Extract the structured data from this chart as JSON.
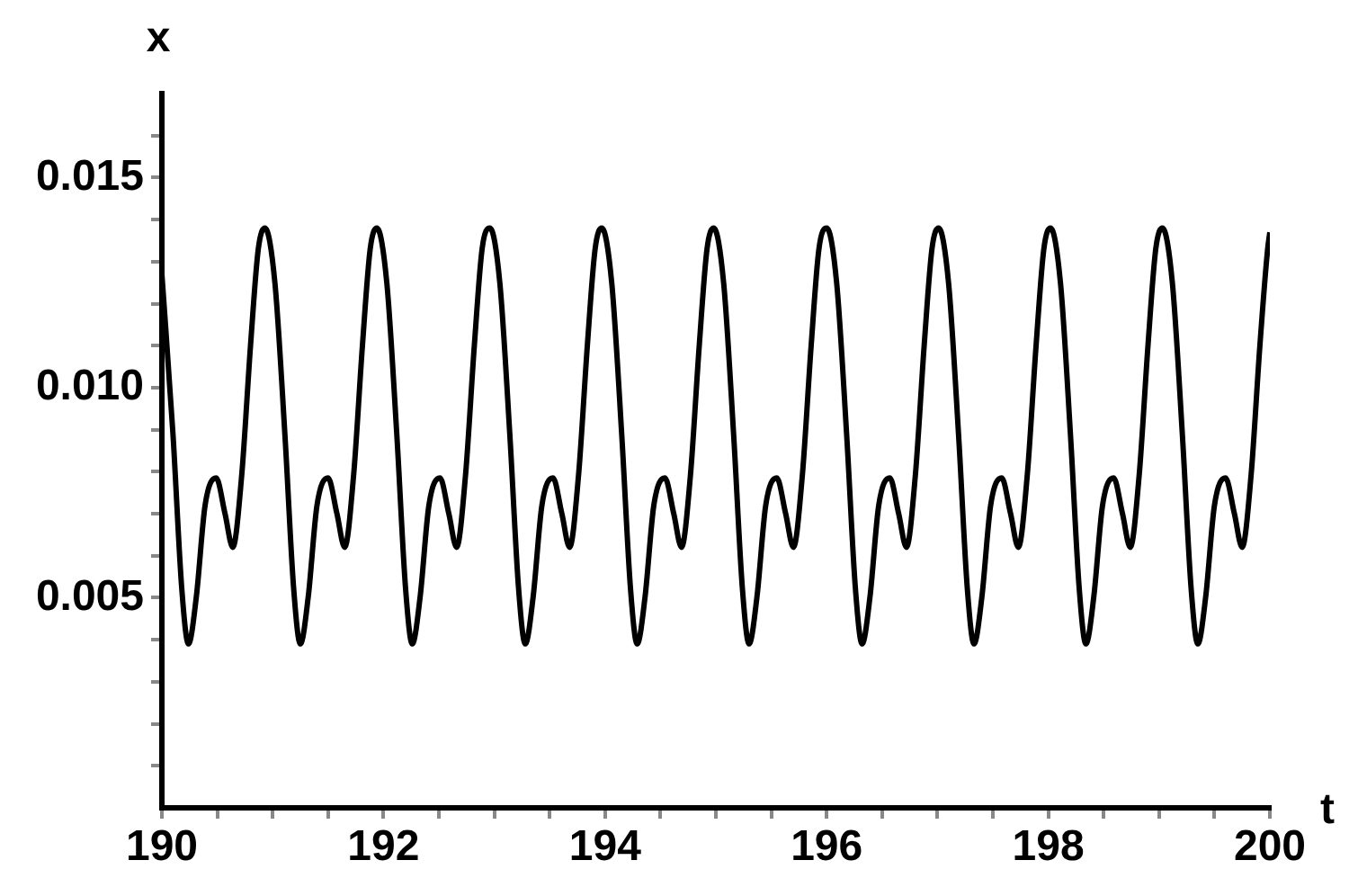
{
  "chart_data": {
    "type": "line",
    "xlabel": "t",
    "ylabel": "x",
    "color": "#000000",
    "marker": "none",
    "line_style": "solid",
    "grid": false,
    "legend": false,
    "x": [
      190.0,
      190.1,
      190.18,
      190.24,
      190.31,
      190.39,
      190.49,
      190.57,
      190.64,
      190.72,
      190.8,
      190.87,
      190.93,
      191.02,
      191.11,
      191.19,
      191.25,
      191.32,
      191.4,
      191.5,
      191.58,
      191.65,
      191.73,
      191.81,
      191.88,
      191.94,
      192.03,
      192.12,
      192.2,
      192.26,
      192.33,
      192.41,
      192.51,
      192.59,
      192.66,
      192.74,
      192.82,
      192.89,
      192.96,
      193.05,
      193.14,
      193.22,
      193.28,
      193.35,
      193.43,
      193.53,
      193.61,
      193.68,
      193.76,
      193.84,
      193.91,
      193.97,
      194.06,
      194.15,
      194.23,
      194.29,
      194.36,
      194.44,
      194.54,
      194.62,
      194.69,
      194.77,
      194.85,
      194.92,
      194.98,
      195.07,
      195.16,
      195.24,
      195.3,
      195.37,
      195.45,
      195.55,
      195.63,
      195.7,
      195.78,
      195.86,
      195.93,
      196.0,
      196.09,
      196.18,
      196.26,
      196.32,
      196.39,
      196.47,
      196.57,
      196.65,
      196.72,
      196.8,
      196.88,
      196.95,
      197.01,
      197.1,
      197.19,
      197.27,
      197.33,
      197.4,
      197.48,
      197.58,
      197.66,
      197.73,
      197.81,
      197.89,
      197.96,
      198.02,
      198.11,
      198.2,
      198.28,
      198.34,
      198.41,
      198.49,
      198.59,
      198.67,
      198.74,
      198.82,
      198.9,
      198.97,
      199.03,
      199.12,
      199.21,
      199.29,
      199.35,
      199.42,
      199.5,
      199.6,
      199.68,
      199.75,
      199.83,
      199.91,
      199.98,
      200.0
    ],
    "values": [
      0.0127,
      0.0089,
      0.0052,
      0.0039,
      0.005,
      0.0072,
      0.00785,
      0.007,
      0.0062,
      0.0079,
      0.011,
      0.0133,
      0.0138,
      0.0125,
      0.0089,
      0.0052,
      0.0039,
      0.005,
      0.0072,
      0.00785,
      0.007,
      0.0062,
      0.0079,
      0.011,
      0.0133,
      0.0138,
      0.0125,
      0.0089,
      0.0052,
      0.0039,
      0.005,
      0.0072,
      0.00785,
      0.007,
      0.0062,
      0.0079,
      0.011,
      0.0133,
      0.0138,
      0.0125,
      0.0089,
      0.0052,
      0.0039,
      0.005,
      0.0072,
      0.00785,
      0.007,
      0.0062,
      0.0079,
      0.011,
      0.0133,
      0.0138,
      0.0125,
      0.0089,
      0.0052,
      0.0039,
      0.005,
      0.0072,
      0.00785,
      0.007,
      0.0062,
      0.0079,
      0.011,
      0.0133,
      0.0138,
      0.0125,
      0.0089,
      0.0052,
      0.0039,
      0.005,
      0.0072,
      0.00785,
      0.007,
      0.0062,
      0.0079,
      0.011,
      0.0133,
      0.0138,
      0.0125,
      0.0089,
      0.0052,
      0.0039,
      0.005,
      0.0072,
      0.00785,
      0.007,
      0.0062,
      0.0079,
      0.011,
      0.0133,
      0.0138,
      0.0125,
      0.0089,
      0.0052,
      0.0039,
      0.005,
      0.0072,
      0.00785,
      0.007,
      0.0062,
      0.0079,
      0.011,
      0.0133,
      0.0138,
      0.0125,
      0.0089,
      0.0052,
      0.0039,
      0.005,
      0.0072,
      0.00785,
      0.007,
      0.0062,
      0.0079,
      0.011,
      0.0133,
      0.0138,
      0.0125,
      0.0089,
      0.0052,
      0.0039,
      0.005,
      0.0072,
      0.00785,
      0.007,
      0.0062,
      0.0079,
      0.011,
      0.0133,
      0.0137
    ],
    "xlim": [
      190,
      200
    ],
    "xticks": [
      190,
      {
        "value": 190.5,
        "label": null
      },
      {
        "value": 191,
        "label": null
      },
      {
        "value": 191.5,
        "label": null
      },
      192,
      {
        "value": 192.5,
        "label": null
      },
      {
        "value": 193,
        "label": null
      },
      {
        "value": 193.5,
        "label": null
      },
      194,
      {
        "value": 194.5,
        "label": null
      },
      {
        "value": 195,
        "label": null
      },
      {
        "value": 195.5,
        "label": null
      },
      196,
      {
        "value": 196.5,
        "label": null
      },
      {
        "value": 197,
        "label": null
      },
      {
        "value": 197.5,
        "label": null
      },
      198,
      {
        "value": 198.5,
        "label": null
      },
      {
        "value": 199,
        "label": null
      },
      {
        "value": 199.5,
        "label": null
      },
      200
    ],
    "ylim": [
      0,
      0.017
    ],
    "yticks": [
      {
        "value": 0.001,
        "label": null
      },
      {
        "value": 0.002,
        "label": null
      },
      {
        "value": 0.003,
        "label": null
      },
      {
        "value": 0.004,
        "label": null
      },
      {
        "value": 0.005,
        "label": "0.005"
      },
      {
        "value": 0.006,
        "label": null
      },
      {
        "value": 0.007,
        "label": null
      },
      {
        "value": 0.008,
        "label": null
      },
      {
        "value": 0.009,
        "label": null
      },
      {
        "value": 0.01,
        "label": "0.010"
      },
      {
        "value": 0.011,
        "label": null
      },
      {
        "value": 0.012,
        "label": null
      },
      {
        "value": 0.013,
        "label": null
      },
      {
        "value": 0.014,
        "label": null
      },
      {
        "value": 0.015,
        "label": "0.015"
      },
      {
        "value": 0.016,
        "label": null
      }
    ]
  }
}
